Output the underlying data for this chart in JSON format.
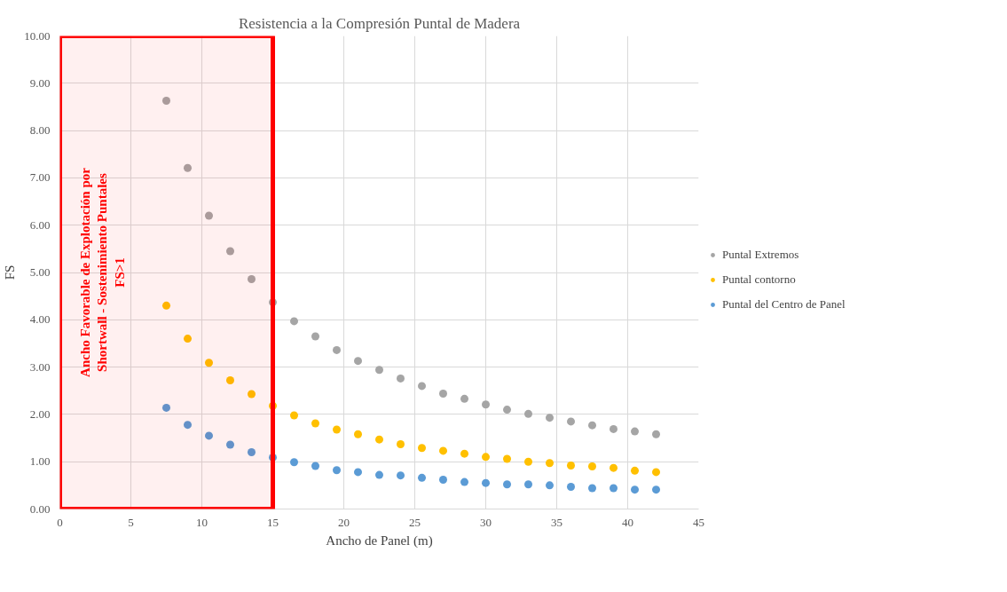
{
  "chart_data": {
    "type": "scatter",
    "title": "Resistencia a la Compresión Puntal de Madera",
    "xlabel": "Ancho de Panel (m)",
    "ylabel": "FS",
    "x": [
      7.5,
      9,
      10.5,
      12,
      13.5,
      15,
      16.5,
      18,
      19.5,
      21,
      22.5,
      24,
      25.5,
      27,
      28.5,
      30,
      31.5,
      33,
      34.5,
      36,
      37.5,
      39,
      40.5,
      42
    ],
    "series": [
      {
        "name": "Puntal Extremos",
        "color": "#a5a5a5",
        "values": [
          8.63,
          7.21,
          6.2,
          5.45,
          4.86,
          4.37,
          3.97,
          3.65,
          3.36,
          3.13,
          2.94,
          2.76,
          2.6,
          2.44,
          2.33,
          2.21,
          2.1,
          2.01,
          1.93,
          1.85,
          1.77,
          1.69,
          1.64,
          1.58
        ]
      },
      {
        "name": "Puntal contorno",
        "color": "#ffc000",
        "values": [
          4.3,
          3.6,
          3.09,
          2.72,
          2.43,
          2.18,
          1.98,
          1.81,
          1.68,
          1.58,
          1.47,
          1.37,
          1.29,
          1.23,
          1.17,
          1.1,
          1.06,
          1.0,
          0.97,
          0.92,
          0.9,
          0.87,
          0.81,
          0.78
        ]
      },
      {
        "name": "Puntal del Centro de Panel",
        "color": "#5b9bd5",
        "values": [
          2.14,
          1.78,
          1.55,
          1.36,
          1.2,
          1.09,
          0.99,
          0.91,
          0.82,
          0.78,
          0.72,
          0.71,
          0.66,
          0.62,
          0.57,
          0.55,
          0.52,
          0.52,
          0.5,
          0.47,
          0.44,
          0.44,
          0.41,
          0.41
        ]
      }
    ],
    "xlim": [
      0,
      45
    ],
    "xticks": [
      0,
      5,
      10,
      15,
      20,
      25,
      30,
      35,
      40,
      45
    ],
    "ylim": [
      0,
      10
    ],
    "yticks": [
      {
        "value": 0,
        "label": "0.00"
      },
      {
        "value": 1,
        "label": "1.00"
      },
      {
        "value": 2,
        "label": "2.00"
      },
      {
        "value": 3,
        "label": "3.00"
      },
      {
        "value": 4,
        "label": "4.00"
      },
      {
        "value": 5,
        "label": "5.00"
      },
      {
        "value": 6,
        "label": "6.00"
      },
      {
        "value": 7,
        "label": "7.00"
      },
      {
        "value": 8,
        "label": "8.00"
      },
      {
        "value": 9,
        "label": "9.00"
      },
      {
        "value": 10,
        "label": "10.00"
      }
    ],
    "bands": [
      {
        "axis": "x",
        "from": 0,
        "to": 15,
        "label": "Ancho Favorable de Explotación por\nShortwall - Sostenimiento Puntales\nFS>1",
        "color": "#ff0000"
      }
    ],
    "grid": true,
    "legend": "right",
    "marker": "circle"
  }
}
